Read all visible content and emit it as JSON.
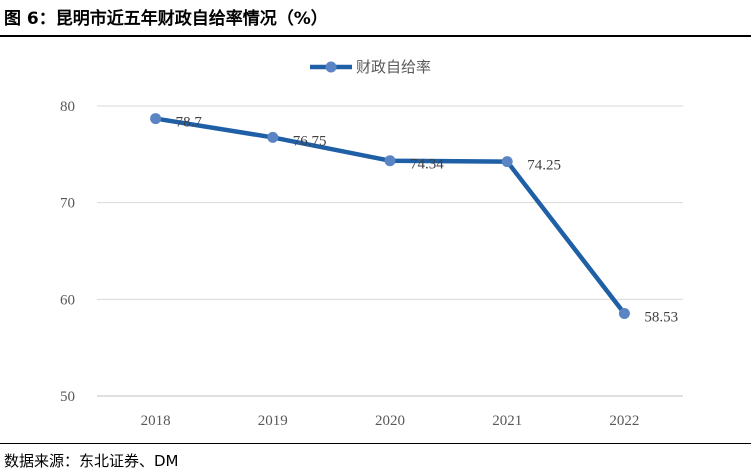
{
  "figure": {
    "title": "图 6：昆明市近五年财政自给率情况（%）",
    "source": "数据来源：东北证券、DM"
  },
  "chart_data": {
    "type": "line",
    "title": "",
    "xlabel": "",
    "ylabel": "",
    "categories": [
      "2018",
      "2019",
      "2020",
      "2021",
      "2022"
    ],
    "series": [
      {
        "name": "财政自给率",
        "values": [
          78.7,
          76.75,
          74.34,
          74.25,
          58.53
        ],
        "labels": [
          "78.7",
          "76.75",
          "74.34",
          "74.25",
          "58.53"
        ],
        "color": "#1F5FA6",
        "marker_color": "#5B84C4"
      }
    ],
    "ylim": [
      50,
      80
    ],
    "yticks": [
      50,
      60,
      70,
      80
    ],
    "grid": true,
    "legend": "top-center",
    "colors": {
      "grid": "#D9D9D9",
      "axis": "#BFBFBF"
    }
  }
}
